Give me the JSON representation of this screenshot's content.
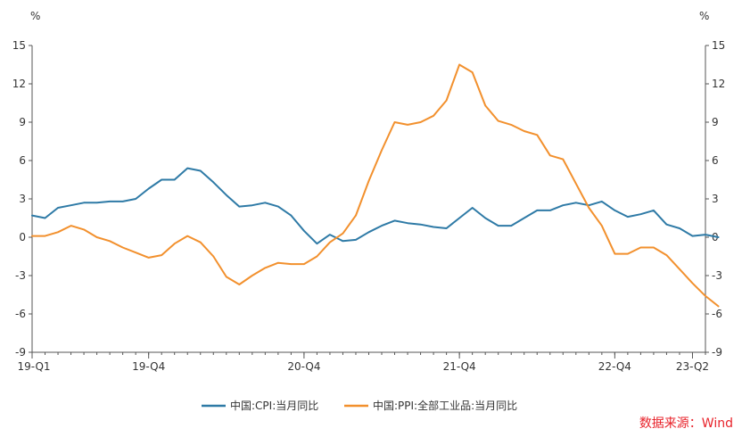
{
  "chart_data": {
    "type": "line",
    "unit_left": "%",
    "unit_right": "%",
    "yticks": [
      -9,
      -6,
      -3,
      0,
      3,
      6,
      9,
      12,
      15
    ],
    "ylim": [
      -9,
      15
    ],
    "xlim": [
      0,
      52
    ],
    "xticks": [
      {
        "x": 0,
        "label": "19-Q1"
      },
      {
        "x": 9,
        "label": "19-Q4"
      },
      {
        "x": 21,
        "label": "20-Q4"
      },
      {
        "x": 33,
        "label": "21-Q4"
      },
      {
        "x": 45,
        "label": "22-Q4"
      },
      {
        "x": 51,
        "label": "23-Q2"
      }
    ],
    "series": [
      {
        "name": "中国:CPI:当月同比",
        "color": "#2e7aa6",
        "values": [
          1.7,
          1.5,
          2.3,
          2.5,
          2.7,
          2.7,
          2.8,
          2.8,
          3.0,
          3.8,
          4.5,
          4.5,
          5.4,
          5.2,
          4.3,
          3.3,
          2.4,
          2.5,
          2.7,
          2.4,
          1.7,
          0.5,
          -0.5,
          0.2,
          -0.3,
          -0.2,
          0.4,
          0.9,
          1.3,
          1.1,
          1.0,
          0.8,
          0.7,
          1.5,
          2.3,
          1.5,
          0.9,
          0.9,
          1.5,
          2.1,
          2.1,
          2.5,
          2.7,
          2.5,
          2.8,
          2.1,
          1.6,
          1.8,
          2.1,
          1.0,
          0.7,
          0.1,
          0.2,
          0.0
        ]
      },
      {
        "name": "中国:PPI:全部工业品:当月同比",
        "color": "#f2902d",
        "values": [
          0.1,
          0.1,
          0.4,
          0.9,
          0.6,
          0.0,
          -0.3,
          -0.8,
          -1.2,
          -1.6,
          -1.4,
          -0.5,
          0.1,
          -0.4,
          -1.5,
          -3.1,
          -3.7,
          -3.0,
          -2.4,
          -2.0,
          -2.1,
          -2.1,
          -1.5,
          -0.4,
          0.3,
          1.7,
          4.4,
          6.8,
          9.0,
          8.8,
          9.0,
          9.5,
          10.7,
          13.5,
          12.9,
          10.3,
          9.1,
          8.8,
          8.3,
          8.0,
          6.4,
          6.1,
          4.2,
          2.3,
          0.9,
          -1.3,
          -1.3,
          -0.8,
          -0.8,
          -1.4,
          -2.5,
          -3.6,
          -4.6,
          -5.4
        ]
      }
    ],
    "legend_position": "bottom-center",
    "grid": false
  },
  "source": "数据来源：Wind"
}
